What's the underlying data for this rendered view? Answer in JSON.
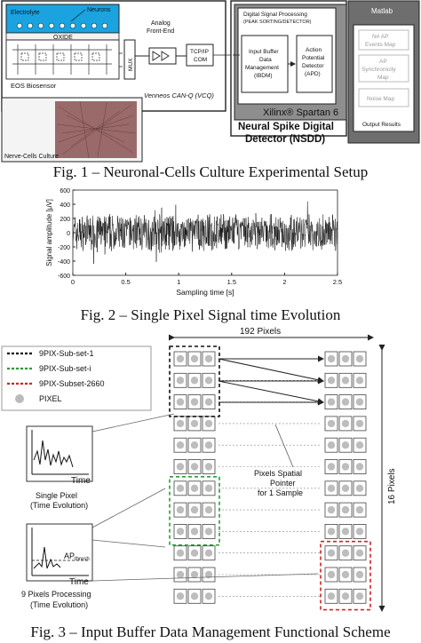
{
  "fig1": {
    "caption": "Fig.  1 – Neuronal-Cells Culture Experimental Setup",
    "electrolyte": "Electrolyte",
    "neurons": "Neurons",
    "oxide": "OXIDE",
    "mux": "MUX",
    "afe_line1": "Analog",
    "afe_line2": "Front-End",
    "tcpip_line1": "TCP/IP",
    "tcpip_line2": "COM",
    "eos": "EOS Biosensor",
    "venneos": "Venneos CAN-Q (VCQ)",
    "culture": "Nerve-Cells Culture",
    "dsp_title_1": "Digital Signal Processing",
    "dsp_title_2": "(PEAK SORTING/DETECTOR)",
    "ibdm_1": "Input Buffer",
    "ibdm_2": "Data",
    "ibdm_3": "Management",
    "ibdm_4": "(IBDM)",
    "apd_1": "Action",
    "apd_2": "Potential",
    "apd_3": "Detector",
    "apd_4": "(APD)",
    "xilinx": "Xilinx® Spartan 6",
    "nsdd_1": "Neural Spike Digital",
    "nsdd_2": "Detector (NSDD)",
    "matlab": "Matlab",
    "m1_1": "N# AP",
    "m1_2": "Events Map",
    "m2_1": "AP",
    "m2_2": "Synchronicity",
    "m2_3": "Map",
    "m3": "Noise Map",
    "output": "Output Results"
  },
  "fig2": {
    "caption": "Fig.  2 – Single Pixel Signal time Evolution"
  },
  "fig3": {
    "caption": "Fig.  3 – Input Buffer Data Management Functional Scheme",
    "width_label": "192 Pixels",
    "height_label": "16 Pixels",
    "legend": [
      {
        "label": "9PIX-Sub-set-1",
        "color": "#111111"
      },
      {
        "label": "9PIX-Sub-set-i",
        "color": "#2a9d3a"
      },
      {
        "label": "9PIX-Subset-2660",
        "color": "#d22222"
      },
      {
        "label": "PIXEL",
        "color": "#bbbbbb"
      }
    ],
    "pointer_1": "Pixels Spatial",
    "pointer_2": "Pointer",
    "pointer_3": "for 1 Sample",
    "time": "Time",
    "single_1": "Single Pixel",
    "single_2": "(Time Evolution)",
    "ap_thresh": "AP",
    "ap_sub": "thresh",
    "nine_1": "9 Pixels Processing",
    "nine_2": "(Time Evolution)"
  },
  "chart_data": {
    "type": "line",
    "title": "",
    "xlabel": "Sampling time [s]",
    "ylabel": "Signal amplitude [µV]",
    "xlim": [
      0,
      2.5
    ],
    "ylim": [
      -600,
      600
    ],
    "xticks": [
      0,
      0.5,
      1,
      1.5,
      2,
      2.5
    ],
    "yticks": [
      600,
      400,
      200,
      0,
      -200,
      -400,
      -600
    ],
    "grid": false,
    "series": [
      {
        "description": "dense noise-like signal, roughly within ±300 µV with spikes up to about ±450 µV",
        "approx_range": [
          -450,
          450
        ]
      }
    ]
  }
}
